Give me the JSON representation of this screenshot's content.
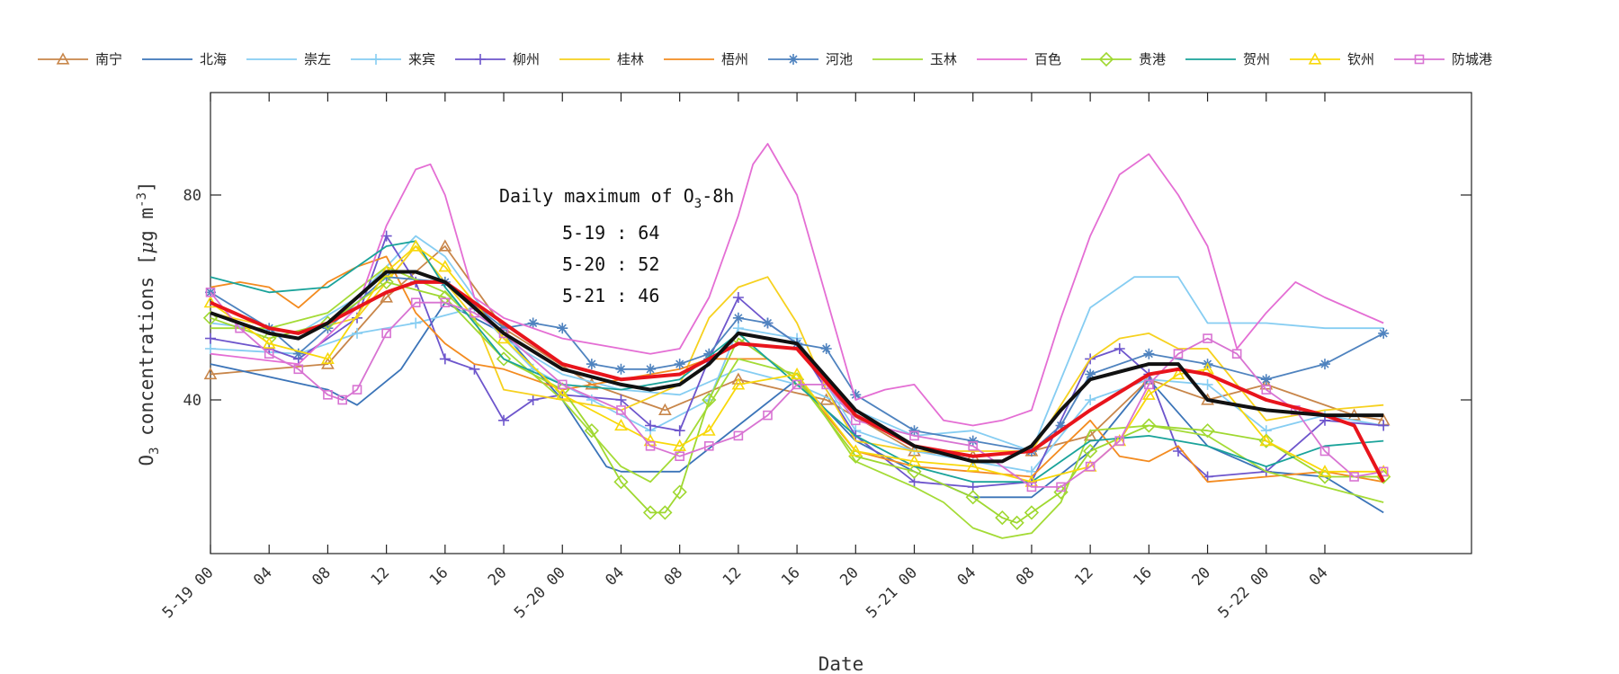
{
  "chart_data": {
    "type": "line",
    "title": "",
    "xlabel": "Date",
    "ylabel_main": "O",
    "ylabel_sub": "3",
    "ylabel_rest": " concentrations [",
    "ylabel_mu": "μ",
    "ylabel_units": "g m",
    "ylabel_sup": "-3",
    "ylabel_close": "]",
    "xlim": [
      0,
      86
    ],
    "ylim": [
      10,
      100
    ],
    "yticks": [
      40,
      80
    ],
    "xtick_labels": [
      "5-19 00",
      "04",
      "08",
      "12",
      "16",
      "20",
      "5-20 00",
      "04",
      "08",
      "12",
      "16",
      "20",
      "5-21 00",
      "04",
      "08",
      "12",
      "16",
      "20",
      "5-22 00",
      "04"
    ],
    "xtick_values": [
      0,
      4,
      8,
      12,
      16,
      20,
      24,
      28,
      32,
      36,
      40,
      44,
      48,
      52,
      56,
      60,
      64,
      68,
      72,
      76
    ],
    "grid": false,
    "legend_position": "top",
    "annotation": {
      "title_pre": "Daily maximum of O",
      "title_sub": "3",
      "title_post": "-8h",
      "lines": [
        "5-19 : 64",
        "5-20 : 52",
        "5-21 : 46"
      ]
    },
    "series": [
      {
        "name": "南宁",
        "color": "#c8864a",
        "marker": "triangle",
        "x": [
          0,
          8,
          12,
          16,
          20,
          26,
          31,
          36,
          42,
          48,
          52,
          56,
          60,
          64,
          68,
          72,
          78,
          80
        ],
        "y": [
          45,
          47,
          60,
          70,
          54,
          43,
          38,
          44,
          40,
          30,
          29,
          30,
          33,
          44,
          40,
          43,
          37,
          36
        ]
      },
      {
        "name": "北海",
        "color": "#3b74b8",
        "marker": "none",
        "x": [
          0,
          8,
          10,
          13,
          16,
          20,
          24,
          27,
          28,
          32,
          36,
          40,
          44,
          48,
          52,
          56,
          60,
          64,
          68,
          72,
          76,
          80
        ],
        "y": [
          47,
          42,
          39,
          46,
          59,
          53,
          40,
          27,
          26,
          26,
          35,
          44,
          32,
          26,
          21,
          21,
          30,
          44,
          31,
          26,
          25,
          18
        ]
      },
      {
        "name": "崇左",
        "color": "#86cdf2",
        "marker": "none",
        "x": [
          0,
          6,
          10,
          14,
          16,
          20,
          24,
          28,
          32,
          36,
          40,
          44,
          48,
          52,
          56,
          60,
          63,
          66,
          68,
          72,
          76,
          80
        ],
        "y": [
          55,
          53,
          60,
          72,
          68,
          52,
          45,
          42,
          41,
          46,
          43,
          38,
          33,
          34,
          30,
          58,
          64,
          64,
          55,
          55,
          54,
          54
        ]
      },
      {
        "name": "来宾",
        "color": "#86cdf2",
        "marker": "plus",
        "x": [
          0,
          6,
          10,
          14,
          18,
          22,
          26,
          30,
          34,
          36,
          40,
          44,
          48,
          52,
          56,
          60,
          64,
          68,
          72,
          76,
          80
        ],
        "y": [
          50,
          49,
          53,
          55,
          58,
          46,
          40,
          34,
          40,
          54,
          52,
          34,
          30,
          28,
          26,
          40,
          44,
          43,
          34,
          37,
          35
        ]
      },
      {
        "name": "柳州",
        "color": "#6d55cc",
        "marker": "plus",
        "x": [
          0,
          4,
          6,
          10,
          12,
          14,
          16,
          18,
          20,
          22,
          24,
          28,
          30,
          32,
          34,
          36,
          38,
          40,
          44,
          48,
          52,
          56,
          60,
          62,
          64,
          66,
          68,
          72,
          76,
          80
        ],
        "y": [
          52,
          50,
          48,
          56,
          72,
          63,
          48,
          46,
          36,
          40,
          41,
          40,
          35,
          34,
          48,
          60,
          55,
          51,
          33,
          24,
          23,
          24,
          48,
          50,
          45,
          30,
          25,
          26,
          36,
          35
        ]
      },
      {
        "name": "桂林",
        "color": "#f6d11e",
        "marker": "none",
        "x": [
          0,
          6,
          10,
          14,
          18,
          20,
          24,
          28,
          32,
          34,
          36,
          38,
          40,
          42,
          44,
          48,
          52,
          56,
          60,
          62,
          64,
          66,
          68,
          72,
          76,
          80
        ],
        "y": [
          57,
          53,
          56,
          70,
          56,
          42,
          40,
          38,
          43,
          56,
          62,
          64,
          55,
          42,
          32,
          30,
          30,
          30,
          48,
          52,
          53,
          50,
          50,
          36,
          38,
          39
        ]
      },
      {
        "name": "梧州",
        "color": "#f38b20",
        "marker": "none",
        "x": [
          0,
          2,
          4,
          6,
          8,
          10,
          12,
          14,
          16,
          18,
          20,
          24,
          28,
          32,
          34,
          38,
          40,
          42,
          44,
          48,
          52,
          56,
          60,
          62,
          64,
          66,
          68,
          72,
          76,
          80
        ],
        "y": [
          62,
          63,
          62,
          58,
          63,
          66,
          68,
          57,
          51,
          47,
          46,
          42,
          44,
          46,
          48,
          48,
          44,
          37,
          30,
          27,
          26,
          25,
          36,
          29,
          28,
          31,
          24,
          25,
          26,
          24
        ]
      },
      {
        "name": "河池",
        "color": "#4f83bf",
        "marker": "star",
        "x": [
          0,
          4,
          6,
          8,
          12,
          16,
          20,
          22,
          24,
          26,
          28,
          30,
          32,
          34,
          36,
          38,
          40,
          42,
          44,
          48,
          52,
          56,
          58,
          60,
          64,
          68,
          72,
          76,
          80
        ],
        "y": [
          61,
          54,
          49,
          54,
          64,
          63,
          54,
          55,
          54,
          47,
          46,
          46,
          47,
          49,
          56,
          55,
          51,
          50,
          41,
          34,
          32,
          30,
          35,
          45,
          49,
          47,
          44,
          47,
          53
        ]
      },
      {
        "name": "玉林",
        "color": "#a4db36",
        "marker": "none",
        "x": [
          0,
          4,
          8,
          12,
          16,
          20,
          24,
          28,
          30,
          32,
          36,
          40,
          44,
          48,
          50,
          52,
          54,
          56,
          58,
          60,
          64,
          68,
          72,
          76,
          80
        ],
        "y": [
          54,
          54,
          57,
          66,
          61,
          50,
          40,
          27,
          24,
          30,
          48,
          45,
          28,
          23,
          20,
          15,
          13,
          14,
          20,
          34,
          35,
          33,
          26,
          23,
          20
        ]
      },
      {
        "name": "百色",
        "color": "#e46ed4",
        "marker": "none",
        "x": [
          0,
          6,
          10,
          12,
          14,
          15,
          16,
          18,
          20,
          24,
          28,
          30,
          32,
          34,
          36,
          37,
          38,
          40,
          42,
          44,
          46,
          48,
          50,
          52,
          54,
          56,
          58,
          60,
          62,
          64,
          66,
          68,
          70,
          72,
          74,
          76,
          80
        ],
        "y": [
          49,
          47,
          58,
          74,
          85,
          86,
          80,
          60,
          56,
          52,
          50,
          49,
          50,
          60,
          76,
          86,
          90,
          80,
          60,
          40,
          42,
          43,
          36,
          35,
          36,
          38,
          56,
          72,
          84,
          88,
          80,
          70,
          50,
          57,
          63,
          60,
          55
        ]
      },
      {
        "name": "贵港",
        "color": "#9fd830",
        "marker": "diamond",
        "x": [
          0,
          4,
          8,
          12,
          16,
          20,
          24,
          26,
          28,
          30,
          31,
          32,
          34,
          36,
          40,
          44,
          48,
          52,
          54,
          55,
          56,
          58,
          60,
          64,
          68,
          72,
          76,
          80
        ],
        "y": [
          56,
          52,
          55,
          63,
          60,
          48,
          42,
          34,
          24,
          18,
          18,
          22,
          40,
          52,
          44,
          29,
          26,
          21,
          17,
          16,
          18,
          22,
          30,
          35,
          34,
          32,
          25,
          25
        ]
      },
      {
        "name": "贺州",
        "color": "#1aa39a",
        "marker": "none",
        "x": [
          0,
          4,
          8,
          12,
          14,
          16,
          20,
          24,
          28,
          32,
          36,
          40,
          44,
          48,
          52,
          56,
          60,
          64,
          68,
          72,
          76,
          80
        ],
        "y": [
          64,
          61,
          62,
          70,
          71,
          62,
          48,
          43,
          42,
          44,
          53,
          43,
          33,
          27,
          24,
          24,
          32,
          33,
          31,
          27,
          31,
          32
        ]
      },
      {
        "name": "钦州",
        "color": "#f8d80a",
        "marker": "triangle",
        "x": [
          0,
          4,
          8,
          12,
          14,
          16,
          20,
          24,
          28,
          30,
          32,
          34,
          36,
          40,
          44,
          48,
          52,
          56,
          60,
          62,
          64,
          66,
          68,
          72,
          76,
          80
        ],
        "y": [
          59,
          51,
          48,
          65,
          70,
          66,
          52,
          41,
          35,
          32,
          31,
          34,
          43,
          45,
          30,
          28,
          27,
          24,
          27,
          32,
          41,
          45,
          46,
          32,
          26,
          26
        ]
      },
      {
        "name": "防城港",
        "color": "#d873d2",
        "marker": "square",
        "x": [
          0,
          2,
          4,
          6,
          8,
          9,
          10,
          12,
          14,
          16,
          18,
          20,
          24,
          28,
          30,
          32,
          34,
          36,
          38,
          40,
          42,
          44,
          48,
          52,
          56,
          58,
          60,
          62,
          64,
          66,
          68,
          70,
          72,
          74,
          76,
          78,
          80
        ],
        "y": [
          61,
          54,
          49,
          46,
          41,
          40,
          42,
          53,
          59,
          59,
          57,
          53,
          43,
          38,
          31,
          29,
          31,
          33,
          37,
          43,
          43,
          36,
          33,
          31,
          23,
          23,
          27,
          32,
          43,
          49,
          52,
          49,
          42,
          38,
          30,
          25,
          26
        ]
      },
      {
        "name": "",
        "color": "#e8141c",
        "marker": "none",
        "width": 4,
        "x": [
          0,
          4,
          6,
          8,
          12,
          14,
          16,
          20,
          24,
          28,
          32,
          36,
          40,
          44,
          48,
          52,
          56,
          60,
          64,
          66,
          68,
          72,
          76,
          78,
          80
        ],
        "y": [
          59,
          54,
          53,
          55,
          61,
          63,
          63,
          55,
          47,
          44,
          45,
          51,
          50,
          37,
          31,
          29,
          30,
          38,
          45,
          46,
          45,
          40,
          37,
          35,
          24
        ]
      },
      {
        "name": "",
        "color": "#111111",
        "marker": "none",
        "width": 4,
        "x": [
          0,
          4,
          6,
          8,
          12,
          14,
          16,
          20,
          24,
          28,
          30,
          32,
          34,
          36,
          38,
          40,
          44,
          48,
          52,
          54,
          56,
          58,
          60,
          64,
          66,
          68,
          72,
          76,
          80
        ],
        "y": [
          57,
          53,
          52,
          55,
          65,
          65,
          63,
          53,
          46,
          43,
          42,
          43,
          47,
          53,
          52,
          51,
          38,
          31,
          28,
          28,
          31,
          38,
          44,
          47,
          47,
          40,
          38,
          37,
          37
        ]
      }
    ]
  }
}
